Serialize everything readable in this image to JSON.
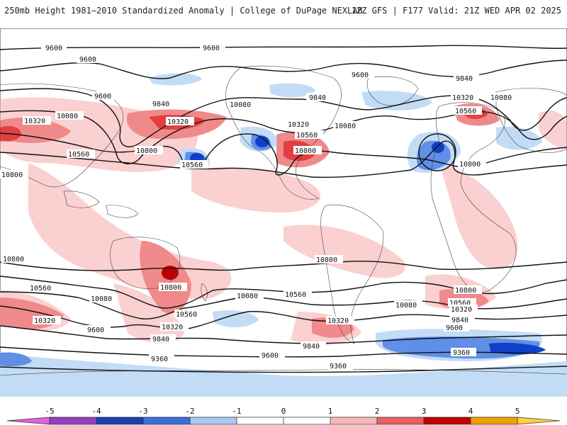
{
  "header": {
    "left_title": "250mb Height 1981–2010 Standardized Anomaly | College of DuPage NEXLAB",
    "right_title": "12Z GFS | F177 Valid: 21Z WED APR 02 2025"
  },
  "contour_labels": [
    "9600",
    "9600",
    "9600",
    "9600",
    "9600",
    "9840",
    "9840",
    "9840",
    "10080",
    "10080",
    "10080",
    "10080",
    "10320",
    "10320",
    "10320",
    "10320",
    "10560",
    "10560",
    "10560",
    "10560",
    "10800",
    "10800",
    "10800",
    "10800",
    "10800",
    "10560",
    "10320",
    "10080",
    "9840",
    "9600",
    "9360",
    "10800",
    "10560",
    "10320",
    "10080",
    "9600",
    "9840",
    "10800",
    "10560",
    "10320",
    "10080",
    "10800",
    "10560",
    "10080",
    "10320",
    "9840",
    "9600",
    "9360",
    "9360"
  ],
  "colorbar": {
    "ticks": [
      "-5",
      "-4",
      "-3",
      "-2",
      "-1",
      "0",
      "1",
      "2",
      "3",
      "4",
      "5"
    ],
    "colors": [
      "#e060e0",
      "#9040c0",
      "#1a3fb0",
      "#3a6fdc",
      "#a8c8f0",
      "#ffffff",
      "#ffffff",
      "#f8b8b8",
      "#e86060",
      "#c00000",
      "#f0a000",
      "#ffd040"
    ]
  },
  "colors": {
    "strong_negative": "#1040c8",
    "negative": "#5f8fe6",
    "weak_negative": "#c3dcf6",
    "weak_positive": "#fbd0d0",
    "positive": "#f08a8a",
    "strong_positive": "#e24040",
    "extreme_positive": "#c00000"
  }
}
